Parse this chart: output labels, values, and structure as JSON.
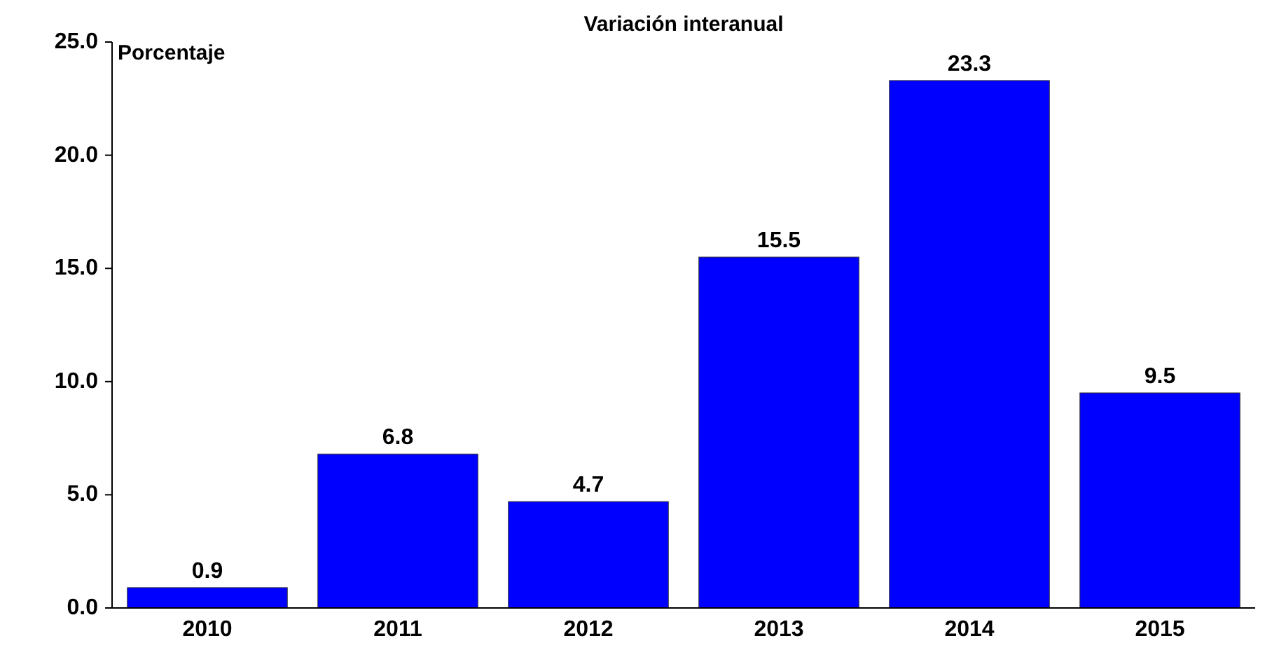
{
  "chart_data": {
    "type": "bar",
    "title": "Variación interanual",
    "ylabel": "Porcentaje",
    "categories": [
      "2010",
      "2011",
      "2012",
      "2013",
      "2014",
      "2015"
    ],
    "values": [
      0.9,
      6.8,
      4.7,
      15.5,
      23.3,
      9.5
    ],
    "color": "#0000ff",
    "ylim": [
      0,
      25
    ],
    "yticks": [
      {
        "value": 0,
        "label": "0.0"
      },
      {
        "value": 5,
        "label": "5.0"
      },
      {
        "value": 10,
        "label": "10.0"
      },
      {
        "value": 15,
        "label": "15.0"
      },
      {
        "value": 20,
        "label": "20.0"
      },
      {
        "value": 25,
        "label": "25.0"
      }
    ],
    "data_labels": true,
    "grid": false
  }
}
